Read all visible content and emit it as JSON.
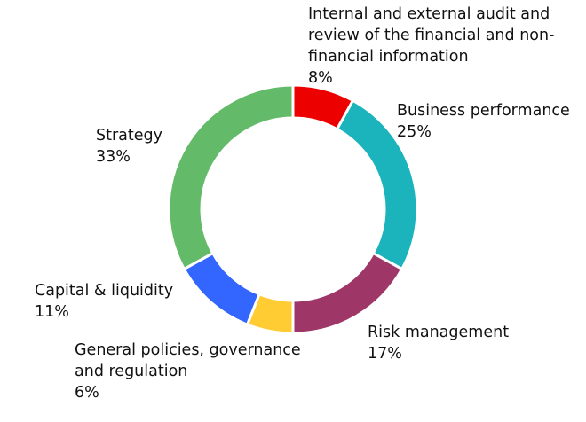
{
  "chart_data": {
    "type": "pie",
    "donut": true,
    "title": "",
    "slices": [
      {
        "label": "Internal and external audit and review of the financial and non-financial  information",
        "value": 8,
        "value_label": "8%",
        "color": "#ec0000"
      },
      {
        "label": "Business performance",
        "value": 25,
        "value_label": "25%",
        "color": "#1bb3bc"
      },
      {
        "label": "Risk management",
        "value": 17,
        "value_label": "17%",
        "color": "#9e3667"
      },
      {
        "label": "General policies, governance and regulation",
        "value": 6,
        "value_label": "6%",
        "color": "#ffcc33"
      },
      {
        "label": "Capital & liquidity",
        "value": 11,
        "value_label": "11%",
        "color": "#3366ff"
      },
      {
        "label": "Strategy",
        "value": 33,
        "value_label": "33%",
        "color": "#63ba68"
      }
    ],
    "legend": "none"
  }
}
